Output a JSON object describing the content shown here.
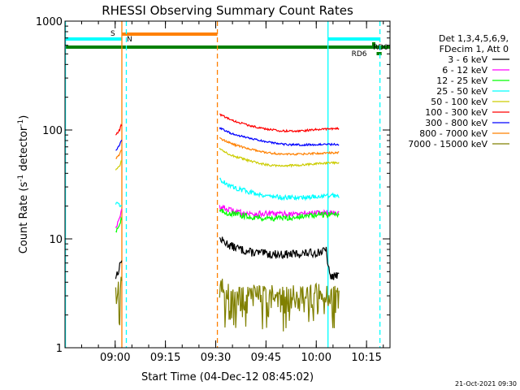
{
  "chart_data": {
    "type": "line",
    "title": "RHESSI Observing Summary Count Rates",
    "xlabel": "Start Time (04-Dec-12 08:45:02)",
    "ylabel": "Count Rate (s^-1 detector^-1)",
    "ylabel_parts": [
      "Count Rate (s",
      "-1",
      " detector",
      "-1",
      ")"
    ],
    "xscale": "linear",
    "yscale": "log",
    "xlim": [
      "08:45:02",
      "10:22:00"
    ],
    "ylim": [
      1,
      1000
    ],
    "x_ticks": [
      "09:00",
      "09:15",
      "09:30",
      "09:45",
      "10:00",
      "10:15"
    ],
    "y_ticks": [
      "1",
      "10",
      "100",
      "1000"
    ],
    "legend_header": [
      "Det 1,3,4,5,6,9,",
      "FDecim 1, Att 0"
    ],
    "legend_position": "right",
    "series": [
      {
        "name": "3 - 6 keV",
        "color": "#000000",
        "points": [
          [
            "09:00:10",
            4.5
          ],
          [
            "09:01:20",
            5.5
          ],
          [
            "09:01:45",
            6.5
          ],
          [
            "09:31:00",
            10
          ],
          [
            "09:35:00",
            8.5
          ],
          [
            "09:40:00",
            7.6
          ],
          [
            "09:45:00",
            7.3
          ],
          [
            "09:50:00",
            7.2
          ],
          [
            "09:55:00",
            7.3
          ],
          [
            "10:00:00",
            7.5
          ],
          [
            "10:03:00",
            7.8
          ],
          [
            "10:04:00",
            4.5
          ],
          [
            "10:06:50",
            4.6
          ]
        ]
      },
      {
        "name": "6 - 12 keV",
        "color": "#ff00ff",
        "points": [
          [
            "09:00:10",
            13
          ],
          [
            "09:01:20",
            15
          ],
          [
            "09:01:45",
            18
          ],
          [
            "09:31:00",
            20
          ],
          [
            "09:35:00",
            18
          ],
          [
            "09:40:00",
            17
          ],
          [
            "09:45:00",
            17
          ],
          [
            "09:50:00",
            17
          ],
          [
            "09:55:00",
            17
          ],
          [
            "10:00:00",
            17.5
          ],
          [
            "10:06:50",
            17.5
          ]
        ]
      },
      {
        "name": "12 - 25 keV",
        "color": "#00ff00",
        "points": [
          [
            "09:00:10",
            12
          ],
          [
            "09:01:20",
            13.5
          ],
          [
            "09:01:45",
            15
          ],
          [
            "09:31:00",
            18
          ],
          [
            "09:35:00",
            17
          ],
          [
            "09:40:00",
            16
          ],
          [
            "09:45:00",
            15.5
          ],
          [
            "09:50:00",
            15.5
          ],
          [
            "09:55:00",
            16
          ],
          [
            "10:00:00",
            16.5
          ],
          [
            "10:06:50",
            17
          ]
        ]
      },
      {
        "name": "25 - 50 keV",
        "color": "#00ffff",
        "points": [
          [
            "09:00:10",
            21
          ],
          [
            "09:01:20",
            20
          ],
          [
            "09:01:45",
            21
          ],
          [
            "09:31:00",
            35
          ],
          [
            "09:35:00",
            30
          ],
          [
            "09:40:00",
            27
          ],
          [
            "09:45:00",
            25
          ],
          [
            "09:50:00",
            24
          ],
          [
            "09:55:00",
            24
          ],
          [
            "10:00:00",
            24.5
          ],
          [
            "10:06:50",
            25
          ]
        ]
      },
      {
        "name": "50 - 100 keV",
        "color": "#cccc00",
        "points": [
          [
            "09:00:10",
            43
          ],
          [
            "09:01:20",
            47
          ],
          [
            "09:01:45",
            52
          ],
          [
            "09:31:00",
            68
          ],
          [
            "09:35:00",
            58
          ],
          [
            "09:40:00",
            52
          ],
          [
            "09:45:00",
            48
          ],
          [
            "09:50:00",
            47
          ],
          [
            "09:55:00",
            47.5
          ],
          [
            "10:00:00",
            49
          ],
          [
            "10:06:50",
            50
          ]
        ]
      },
      {
        "name": "100 - 300 keV",
        "color": "#ff0000",
        "points": [
          [
            "09:00:10",
            90
          ],
          [
            "09:01:20",
            100
          ],
          [
            "09:01:45",
            110
          ],
          [
            "09:31:00",
            140
          ],
          [
            "09:35:00",
            122
          ],
          [
            "09:40:00",
            110
          ],
          [
            "09:45:00",
            102
          ],
          [
            "09:50:00",
            98
          ],
          [
            "09:55:00",
            98
          ],
          [
            "10:00:00",
            101
          ],
          [
            "10:06:50",
            103
          ]
        ]
      },
      {
        "name": "300 - 800 keV",
        "color": "#0000ff",
        "points": [
          [
            "09:00:10",
            65
          ],
          [
            "09:01:20",
            72
          ],
          [
            "09:01:45",
            80
          ],
          [
            "09:31:00",
            105
          ],
          [
            "09:35:00",
            92
          ],
          [
            "09:40:00",
            84
          ],
          [
            "09:45:00",
            78
          ],
          [
            "09:50:00",
            74
          ],
          [
            "09:55:00",
            73
          ],
          [
            "10:00:00",
            73.5
          ],
          [
            "10:06:50",
            74
          ]
        ]
      },
      {
        "name": "800 - 7000 keV",
        "color": "#ff8000",
        "points": [
          [
            "09:00:10",
            55
          ],
          [
            "09:01:20",
            60
          ],
          [
            "09:01:45",
            65
          ],
          [
            "09:31:00",
            85
          ],
          [
            "09:35:00",
            74
          ],
          [
            "09:40:00",
            67
          ],
          [
            "09:45:00",
            62
          ],
          [
            "09:50:00",
            60
          ],
          [
            "09:55:00",
            60
          ],
          [
            "10:00:00",
            61
          ],
          [
            "10:06:50",
            62
          ]
        ]
      },
      {
        "name": "7000 - 15000 keV",
        "color": "#808000",
        "points": [
          [
            "09:00:10",
            3.5
          ],
          [
            "09:01:20",
            3.2
          ],
          [
            "09:01:45",
            3.5
          ],
          [
            "09:31:00",
            3.5
          ],
          [
            "09:35:00",
            3.0
          ],
          [
            "09:40:00",
            2.9
          ],
          [
            "09:45:00",
            3.0
          ],
          [
            "09:50:00",
            2.9
          ],
          [
            "09:55:00",
            2.9
          ],
          [
            "10:00:00",
            3.0
          ],
          [
            "10:06:50",
            3.0
          ]
        ]
      }
    ],
    "bars": [
      {
        "label": "S",
        "color": "#ff8000",
        "start": "09:02:00",
        "end": "09:30:30"
      },
      {
        "label": "N",
        "color": "#00ffff",
        "start": "08:45:02",
        "end": "09:02:00"
      },
      {
        "label": "N",
        "color": "#00ffff",
        "start": "10:03:30",
        "end": "10:19:00"
      },
      {
        "label": "RD0",
        "color": "#008000",
        "start": "08:45:02",
        "end": "10:22:00"
      },
      {
        "label": "RD6",
        "color": "#008000",
        "start": "10:18:00",
        "end": "10:19:30"
      }
    ],
    "vlines": [
      {
        "time": "08:45:10",
        "color": "#00ffff",
        "style": "solid"
      },
      {
        "time": "09:02:00",
        "color": "#ff8000",
        "style": "solid"
      },
      {
        "time": "09:03:20",
        "color": "#00ffff",
        "style": "dashed"
      },
      {
        "time": "09:30:30",
        "color": "#ff8000",
        "style": "dashed"
      },
      {
        "time": "10:03:30",
        "color": "#00ffff",
        "style": "solid"
      },
      {
        "time": "10:19:00",
        "color": "#00ffff",
        "style": "dashed"
      }
    ],
    "footer_date": "21-Oct-2021 09:30"
  }
}
